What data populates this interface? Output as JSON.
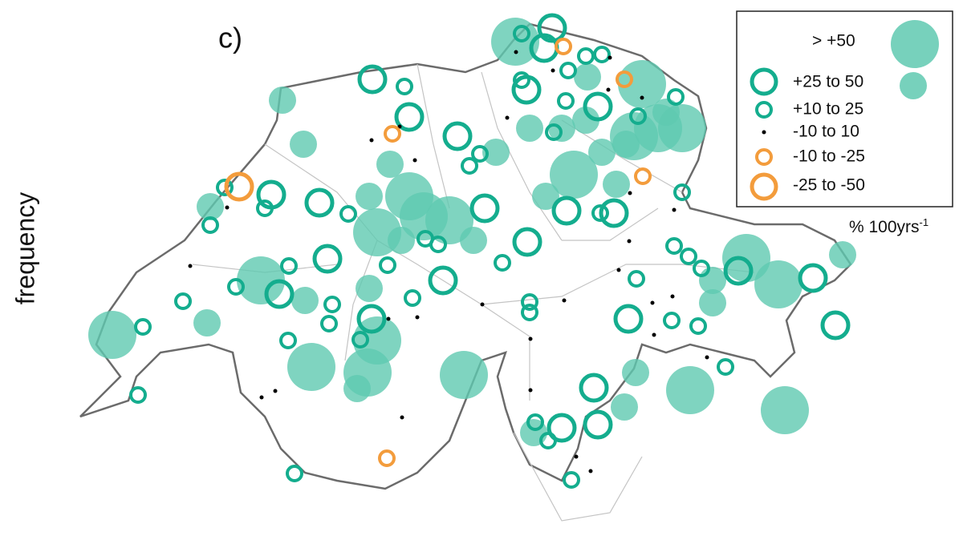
{
  "panel_label": "c)",
  "axis_label": "frequency",
  "legend": {
    "items": [
      {
        "label": "> +50"
      },
      {
        "label": "+25 to 50"
      },
      {
        "label": "+10 to 25"
      },
      {
        "label": "-10 to 10"
      },
      {
        "label": "-10 to -25"
      },
      {
        "label": "-25 to -50"
      }
    ]
  },
  "unit": {
    "text": "% 100yrs",
    "superscript": "-1"
  }
}
